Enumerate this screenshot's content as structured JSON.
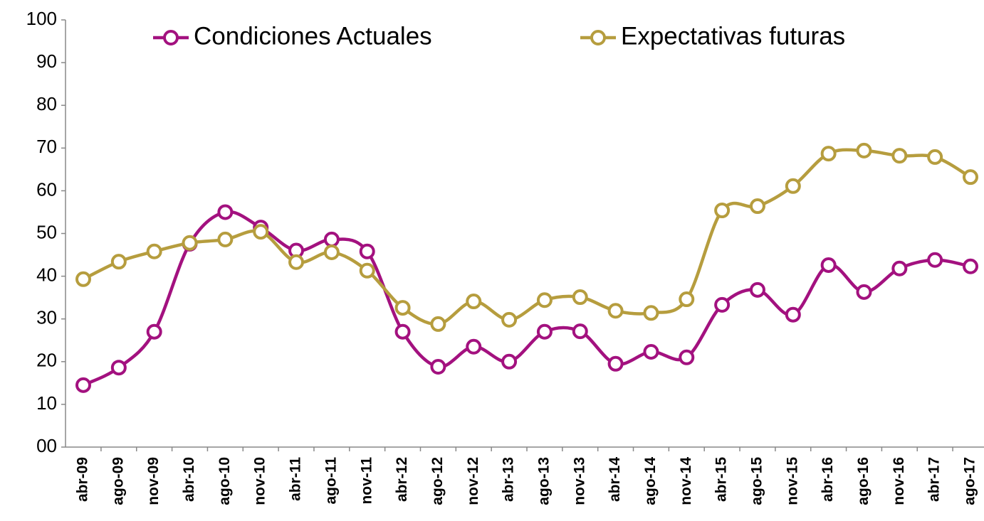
{
  "chart_data": {
    "type": "line",
    "categories": [
      "abr-09",
      "ago-09",
      "nov-09",
      "abr-10",
      "ago-10",
      "nov-10",
      "abr-11",
      "ago-11",
      "nov-11",
      "abr-12",
      "ago-12",
      "nov-12",
      "abr-13",
      "ago-13",
      "nov-13",
      "abr-14",
      "ago-14",
      "nov-14",
      "abr-15",
      "ago-15",
      "nov-15",
      "abr-16",
      "ago-16",
      "nov-16",
      "abr-17",
      "ago-17"
    ],
    "series": [
      {
        "name": "Condiciones Actuales",
        "color": "#a3117f",
        "values": [
          14.5,
          18.6,
          27,
          47.6,
          55,
          51.4,
          46,
          48.6,
          45.8,
          27,
          18.8,
          23.5,
          20,
          27,
          27.1,
          19.5,
          22.3,
          21,
          33.3,
          36.8,
          31,
          42.6,
          36.3,
          41.8,
          43.8,
          42.3
        ]
      },
      {
        "name": "Expectativas futuras",
        "color": "#b69d3e",
        "values": [
          39.3,
          43.4,
          45.8,
          47.8,
          48.6,
          50.4,
          43.3,
          45.6,
          41.3,
          32.6,
          28.8,
          34.1,
          29.8,
          34.4,
          35.1,
          31.9,
          31.4,
          34.6,
          55.4,
          56.4,
          61.1,
          68.7,
          69.4,
          68.2,
          67.9,
          63.2
        ]
      }
    ],
    "ylim": [
      0,
      100
    ],
    "yticks": [
      {
        "value": 0,
        "label": "00"
      },
      10,
      20,
      30,
      40,
      50,
      60,
      70,
      80,
      90,
      100
    ],
    "legend": "top"
  }
}
